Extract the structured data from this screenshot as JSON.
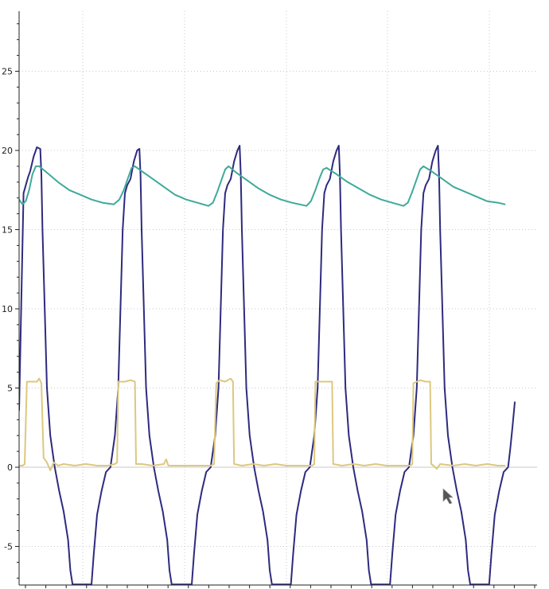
{
  "chart_data": {
    "type": "line",
    "title": "",
    "xlabel": "",
    "ylabel": "",
    "ylim": [
      -7.4,
      28.6
    ],
    "yticks": [
      -5,
      0,
      5,
      10,
      15,
      20,
      25
    ],
    "ytick_labels": [
      "-5",
      "0",
      "5",
      "10",
      "15",
      "20",
      "25"
    ],
    "grid": true,
    "grid_color": "#c8c8c8",
    "axis_color": "#222222",
    "zero_line_color": "#c8c8c8",
    "cursor_icon": "mouse-pointer-icon",
    "series": [
      {
        "color": "#2e2a7e",
        "points": [
          [
            0,
            3.6
          ],
          [
            2,
            10.5
          ],
          [
            4,
            17.3
          ],
          [
            6,
            17.8
          ],
          [
            8,
            18.3
          ],
          [
            10,
            18.7
          ],
          [
            13,
            19.6
          ],
          [
            16,
            20.2
          ],
          [
            19,
            20.1
          ],
          [
            20,
            18.5
          ],
          [
            21,
            15.0
          ],
          [
            23,
            10.0
          ],
          [
            25,
            5.0
          ],
          [
            28,
            2.0
          ],
          [
            32,
            0.0
          ],
          [
            36,
            -1.5
          ],
          [
            40,
            -2.8
          ],
          [
            44,
            -4.6
          ],
          [
            46,
            -6.5
          ],
          [
            48,
            -7.4
          ],
          [
            65,
            -7.4
          ],
          [
            67,
            -5.5
          ],
          [
            70,
            -3.0
          ],
          [
            74,
            -1.5
          ],
          [
            78,
            -0.3
          ],
          [
            82,
            0.0
          ],
          [
            86,
            2.0
          ],
          [
            89,
            5.0
          ],
          [
            91,
            10.0
          ],
          [
            93,
            15.0
          ],
          [
            95,
            17.3
          ],
          [
            97,
            17.8
          ],
          [
            100,
            18.2
          ],
          [
            103,
            19.3
          ],
          [
            106,
            20.0
          ],
          [
            108,
            20.1
          ],
          [
            109,
            18.5
          ],
          [
            110,
            15.0
          ],
          [
            112,
            10.0
          ],
          [
            114,
            5.0
          ],
          [
            117,
            2.0
          ],
          [
            121,
            0.0
          ],
          [
            125,
            -1.5
          ],
          [
            129,
            -2.8
          ],
          [
            133,
            -4.6
          ],
          [
            135,
            -6.5
          ],
          [
            137,
            -7.4
          ],
          [
            155,
            -7.4
          ],
          [
            157,
            -5.5
          ],
          [
            160,
            -3.0
          ],
          [
            164,
            -1.5
          ],
          [
            168,
            -0.3
          ],
          [
            172,
            0.0
          ],
          [
            176,
            2.0
          ],
          [
            179,
            5.0
          ],
          [
            181,
            10.0
          ],
          [
            183,
            15.0
          ],
          [
            185,
            17.3
          ],
          [
            187,
            17.8
          ],
          [
            190,
            18.2
          ],
          [
            193,
            19.3
          ],
          [
            196,
            20.0
          ],
          [
            198,
            20.3
          ],
          [
            199,
            18.5
          ],
          [
            200,
            15.0
          ],
          [
            202,
            10.0
          ],
          [
            204,
            5.0
          ],
          [
            207,
            2.0
          ],
          [
            211,
            0.0
          ],
          [
            215,
            -1.5
          ],
          [
            219,
            -2.8
          ],
          [
            223,
            -4.6
          ],
          [
            225,
            -6.5
          ],
          [
            227,
            -7.4
          ],
          [
            244,
            -7.4
          ],
          [
            246,
            -5.5
          ],
          [
            249,
            -3.0
          ],
          [
            253,
            -1.5
          ],
          [
            257,
            -0.3
          ],
          [
            261,
            0.0
          ],
          [
            265,
            2.0
          ],
          [
            268,
            5.0
          ],
          [
            270,
            10.0
          ],
          [
            272,
            15.0
          ],
          [
            274,
            17.3
          ],
          [
            276,
            17.8
          ],
          [
            279,
            18.2
          ],
          [
            282,
            19.3
          ],
          [
            285,
            20.0
          ],
          [
            287,
            20.3
          ],
          [
            288,
            18.5
          ],
          [
            289,
            15.0
          ],
          [
            291,
            10.0
          ],
          [
            293,
            5.0
          ],
          [
            296,
            2.0
          ],
          [
            300,
            0.0
          ],
          [
            304,
            -1.5
          ],
          [
            308,
            -2.8
          ],
          [
            312,
            -4.6
          ],
          [
            314,
            -6.5
          ],
          [
            316,
            -7.4
          ],
          [
            333,
            -7.4
          ],
          [
            335,
            -5.5
          ],
          [
            338,
            -3.0
          ],
          [
            342,
            -1.5
          ],
          [
            346,
            -0.3
          ],
          [
            350,
            0.0
          ],
          [
            354,
            2.0
          ],
          [
            357,
            5.0
          ],
          [
            359,
            10.0
          ],
          [
            361,
            15.0
          ],
          [
            363,
            17.3
          ],
          [
            365,
            17.8
          ],
          [
            368,
            18.2
          ],
          [
            371,
            19.3
          ],
          [
            374,
            20.0
          ],
          [
            376,
            20.3
          ],
          [
            377,
            18.5
          ],
          [
            378,
            15.0
          ],
          [
            380,
            10.0
          ],
          [
            382,
            5.0
          ],
          [
            385,
            2.0
          ],
          [
            389,
            0.0
          ],
          [
            393,
            -1.5
          ],
          [
            397,
            -2.8
          ],
          [
            401,
            -4.6
          ],
          [
            403,
            -6.5
          ],
          [
            405,
            -7.4
          ],
          [
            422,
            -7.4
          ],
          [
            424,
            -5.5
          ],
          [
            427,
            -3.0
          ],
          [
            431,
            -1.5
          ],
          [
            435,
            -0.3
          ],
          [
            439,
            0.0
          ],
          [
            441,
            1.2
          ],
          [
            443,
            2.6
          ],
          [
            445,
            4.1
          ]
        ]
      },
      {
        "color": "#3eaa9a",
        "points": [
          [
            0,
            16.9
          ],
          [
            3,
            16.6
          ],
          [
            6,
            16.8
          ],
          [
            9,
            17.5
          ],
          [
            12,
            18.5
          ],
          [
            15,
            19.0
          ],
          [
            18,
            19.0
          ],
          [
            25,
            18.6
          ],
          [
            35,
            18.0
          ],
          [
            45,
            17.5
          ],
          [
            55,
            17.2
          ],
          [
            65,
            16.9
          ],
          [
            75,
            16.7
          ],
          [
            85,
            16.6
          ],
          [
            90,
            16.9
          ],
          [
            94,
            17.5
          ],
          [
            98,
            18.3
          ],
          [
            101,
            18.9
          ],
          [
            104,
            19.0
          ],
          [
            110,
            18.7
          ],
          [
            120,
            18.2
          ],
          [
            130,
            17.7
          ],
          [
            140,
            17.2
          ],
          [
            150,
            16.9
          ],
          [
            160,
            16.7
          ],
          [
            170,
            16.5
          ],
          [
            174,
            16.7
          ],
          [
            178,
            17.4
          ],
          [
            182,
            18.2
          ],
          [
            185,
            18.8
          ],
          [
            188,
            19.0
          ],
          [
            195,
            18.6
          ],
          [
            205,
            18.1
          ],
          [
            215,
            17.6
          ],
          [
            225,
            17.2
          ],
          [
            235,
            16.9
          ],
          [
            245,
            16.7
          ],
          [
            258,
            16.5
          ],
          [
            262,
            16.8
          ],
          [
            266,
            17.5
          ],
          [
            270,
            18.3
          ],
          [
            273,
            18.8
          ],
          [
            276,
            18.9
          ],
          [
            285,
            18.5
          ],
          [
            295,
            18.0
          ],
          [
            305,
            17.6
          ],
          [
            315,
            17.2
          ],
          [
            325,
            16.9
          ],
          [
            335,
            16.7
          ],
          [
            345,
            16.5
          ],
          [
            349,
            16.7
          ],
          [
            353,
            17.4
          ],
          [
            357,
            18.2
          ],
          [
            360,
            18.8
          ],
          [
            363,
            19.0
          ],
          [
            370,
            18.7
          ],
          [
            380,
            18.2
          ],
          [
            390,
            17.7
          ],
          [
            400,
            17.4
          ],
          [
            410,
            17.1
          ],
          [
            420,
            16.8
          ],
          [
            430,
            16.7
          ],
          [
            436,
            16.6
          ]
        ]
      },
      {
        "color": "#dcc87e",
        "points": [
          [
            0,
            0.1
          ],
          [
            3,
            0.1
          ],
          [
            5,
            0.2
          ],
          [
            7,
            5.4
          ],
          [
            12,
            5.4
          ],
          [
            16,
            5.4
          ],
          [
            18,
            5.6
          ],
          [
            20,
            5.3
          ],
          [
            22,
            0.6
          ],
          [
            25,
            0.3
          ],
          [
            28,
            -0.2
          ],
          [
            31,
            0.3
          ],
          [
            35,
            0.1
          ],
          [
            40,
            0.2
          ],
          [
            50,
            0.1
          ],
          [
            60,
            0.2
          ],
          [
            70,
            0.1
          ],
          [
            80,
            0.1
          ],
          [
            86,
            0.2
          ],
          [
            88,
            0.3
          ],
          [
            89,
            5.4
          ],
          [
            95,
            5.4
          ],
          [
            100,
            5.5
          ],
          [
            104,
            5.4
          ],
          [
            105,
            0.2
          ],
          [
            110,
            0.2
          ],
          [
            120,
            0.1
          ],
          [
            130,
            0.2
          ],
          [
            132,
            0.5
          ],
          [
            134,
            0.1
          ],
          [
            145,
            0.1
          ],
          [
            160,
            0.1
          ],
          [
            172,
            0.1
          ],
          [
            175,
            0.2
          ],
          [
            177,
            5.3
          ],
          [
            180,
            5.5
          ],
          [
            185,
            5.4
          ],
          [
            190,
            5.6
          ],
          [
            192,
            5.4
          ],
          [
            193,
            0.2
          ],
          [
            200,
            0.1
          ],
          [
            210,
            0.2
          ],
          [
            220,
            0.1
          ],
          [
            230,
            0.2
          ],
          [
            240,
            0.1
          ],
          [
            255,
            0.1
          ],
          [
            263,
            0.1
          ],
          [
            265,
            0.2
          ],
          [
            266,
            5.4
          ],
          [
            272,
            5.4
          ],
          [
            278,
            5.4
          ],
          [
            281,
            5.4
          ],
          [
            282,
            0.2
          ],
          [
            290,
            0.1
          ],
          [
            300,
            0.2
          ],
          [
            310,
            0.1
          ],
          [
            320,
            0.2
          ],
          [
            330,
            0.1
          ],
          [
            345,
            0.1
          ],
          [
            351,
            0.1
          ],
          [
            353,
            0.2
          ],
          [
            354,
            5.3
          ],
          [
            360,
            5.5
          ],
          [
            365,
            5.4
          ],
          [
            369,
            5.4
          ],
          [
            370,
            0.2
          ],
          [
            372,
            0.1
          ],
          [
            375,
            -0.1
          ],
          [
            378,
            0.2
          ],
          [
            390,
            0.1
          ],
          [
            400,
            0.2
          ],
          [
            410,
            0.1
          ],
          [
            420,
            0.2
          ],
          [
            430,
            0.1
          ],
          [
            436,
            0.1
          ]
        ]
      }
    ]
  }
}
